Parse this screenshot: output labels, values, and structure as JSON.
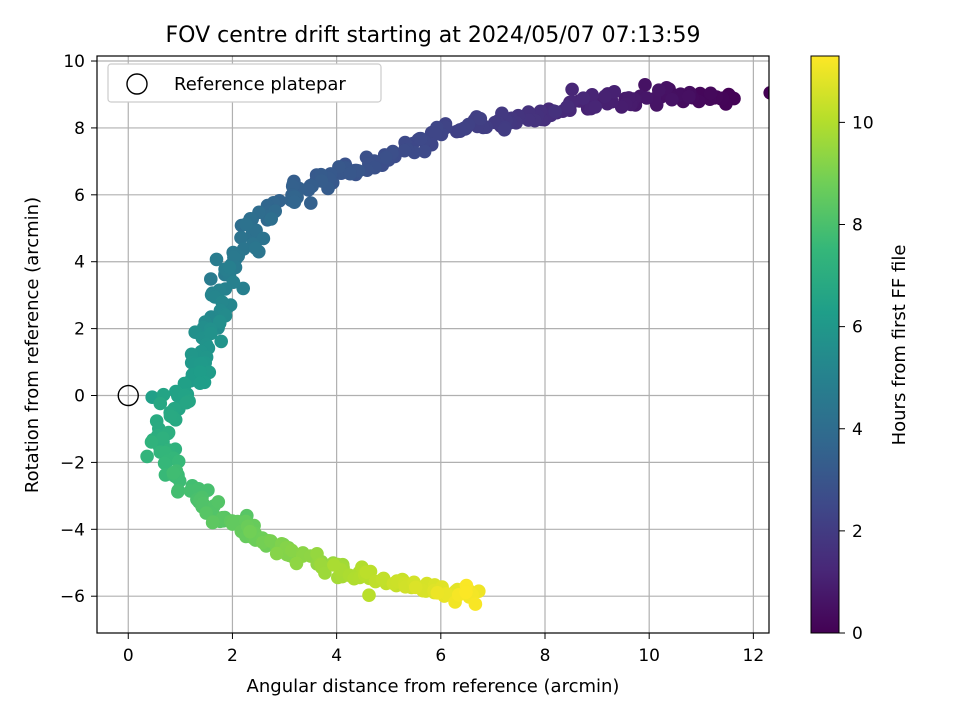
{
  "chart_data": {
    "type": "scatter",
    "title": "FOV centre drift starting at 2024/05/07 07:13:59",
    "xlabel": "Angular distance from reference (arcmin)",
    "ylabel": "Rotation from reference (arcmin)",
    "xlim": [
      -0.6,
      12.3
    ],
    "ylim": [
      -7.1,
      10.15
    ],
    "xticks": [
      0,
      2,
      4,
      6,
      8,
      10,
      12
    ],
    "yticks": [
      -6,
      -4,
      -2,
      0,
      2,
      4,
      6,
      8,
      10
    ],
    "grid": true,
    "legend": {
      "placement": "top-left",
      "entries": [
        "Reference platepar"
      ]
    },
    "reference_point": {
      "x": 0,
      "y": 0,
      "label": "Reference platepar"
    },
    "colorbar": {
      "label": "Hours from first FF file",
      "colormap": "viridis",
      "range": [
        0,
        11.3
      ],
      "ticks": [
        0,
        2,
        4,
        6,
        8,
        10
      ]
    },
    "path": [
      {
        "x": 11.7,
        "y": 9.0,
        "t": 0.0
      },
      {
        "x": 10.1,
        "y": 8.9,
        "t": 0.6
      },
      {
        "x": 8.65,
        "y": 8.75,
        "t": 1.2
      },
      {
        "x": 8.0,
        "y": 8.35,
        "t": 1.5
      },
      {
        "x": 6.9,
        "y": 8.15,
        "t": 2.0
      },
      {
        "x": 6.1,
        "y": 7.95,
        "t": 2.3
      },
      {
        "x": 5.0,
        "y": 7.1,
        "t": 2.7
      },
      {
        "x": 4.0,
        "y": 6.6,
        "t": 3.1
      },
      {
        "x": 3.0,
        "y": 5.9,
        "t": 3.6
      },
      {
        "x": 2.6,
        "y": 5.3,
        "t": 4.0
      },
      {
        "x": 2.1,
        "y": 4.3,
        "t": 4.5
      },
      {
        "x": 1.8,
        "y": 3.0,
        "t": 5.1
      },
      {
        "x": 1.6,
        "y": 2.0,
        "t": 5.6
      },
      {
        "x": 1.4,
        "y": 1.0,
        "t": 6.0
      },
      {
        "x": 1.05,
        "y": 0.0,
        "t": 6.5
      },
      {
        "x": 0.8,
        "y": -0.9,
        "t": 6.9
      },
      {
        "x": 0.6,
        "y": -1.6,
        "t": 7.3
      },
      {
        "x": 0.9,
        "y": -2.4,
        "t": 7.7
      },
      {
        "x": 1.4,
        "y": -3.2,
        "t": 8.1
      },
      {
        "x": 2.1,
        "y": -3.9,
        "t": 8.5
      },
      {
        "x": 2.9,
        "y": -4.6,
        "t": 9.0
      },
      {
        "x": 3.8,
        "y": -5.1,
        "t": 9.6
      },
      {
        "x": 4.8,
        "y": -5.5,
        "t": 10.2
      },
      {
        "x": 5.8,
        "y": -5.8,
        "t": 10.7
      },
      {
        "x": 6.8,
        "y": -6.0,
        "t": 11.3
      }
    ]
  },
  "colors": {
    "viridis": [
      "#440154",
      "#482878",
      "#3e4989",
      "#31688e",
      "#26828e",
      "#1f9e89",
      "#35b779",
      "#6ece58",
      "#b5de2b",
      "#fde725"
    ],
    "grid": "#b0b0b0",
    "axes": "#000000"
  }
}
